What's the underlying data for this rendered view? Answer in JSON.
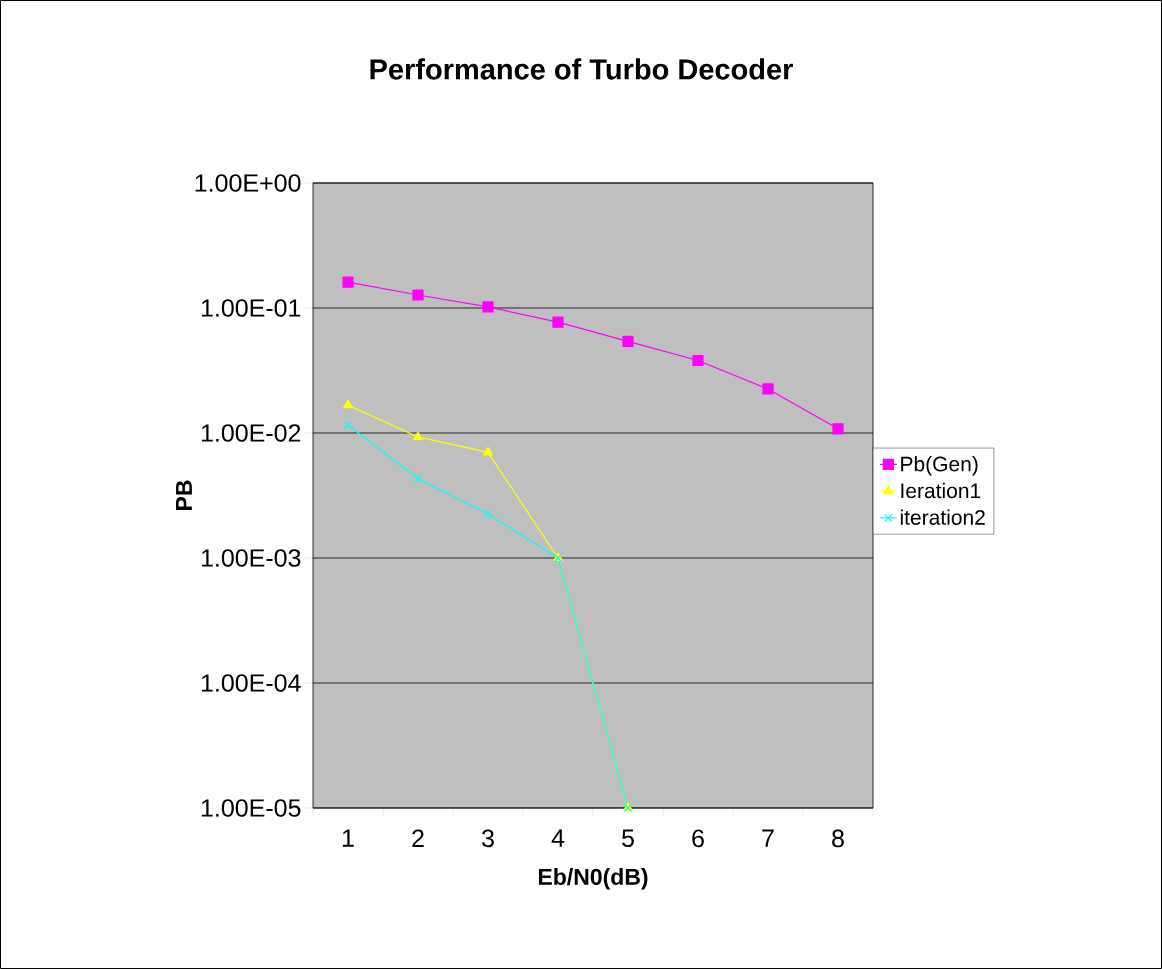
{
  "chart_data": {
    "type": "line",
    "title": "Performance of Turbo Decoder",
    "xlabel": "Eb/N0(dB)",
    "ylabel": "PB",
    "categories": [
      "1",
      "2",
      "3",
      "4",
      "5",
      "6",
      "7",
      "8"
    ],
    "series": [
      {
        "name": "Pb(Gen)",
        "color": "#ff00ff",
        "marker": "square",
        "values": [
          0.161,
          0.127,
          0.102,
          0.077,
          0.054,
          0.038,
          0.0225,
          0.0108
        ]
      },
      {
        "name": "Ieration1",
        "color": "#ffff00",
        "marker": "triangle",
        "values": [
          0.0167,
          0.0093,
          0.007,
          0.001,
          1e-05,
          null,
          null,
          null
        ]
      },
      {
        "name": "iteration2",
        "color": "#00ffff",
        "marker": "cross",
        "values": [
          0.0116,
          0.0043,
          0.00225,
          0.001,
          1e-05,
          null,
          null,
          null
        ]
      }
    ],
    "log": "y",
    "ylim": [
      1e-05,
      1
    ],
    "yticks": [
      {
        "value": 1e-05,
        "label": "1.00E-05"
      },
      {
        "value": 0.0001,
        "label": "1.00E-04"
      },
      {
        "value": 0.001,
        "label": "1.00E-03"
      },
      {
        "value": 0.01,
        "label": "1.00E-02"
      },
      {
        "value": 0.1,
        "label": "1.00E-01"
      },
      {
        "value": 1,
        "label": "1.00E+00"
      }
    ],
    "grid": "y",
    "legend": "right"
  }
}
